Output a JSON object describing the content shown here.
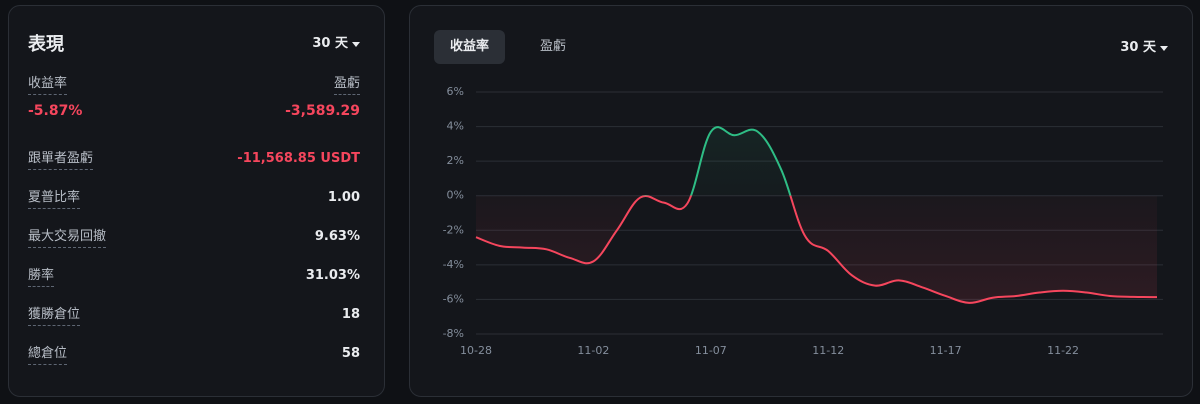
{
  "header": {
    "title": "表現",
    "period": "30 天"
  },
  "summary": {
    "roi_label": "收益率",
    "pnl_label": "盈虧",
    "roi_value": "-5.87%",
    "pnl_value": "-3,589.29"
  },
  "metrics": [
    {
      "label": "跟單者盈虧",
      "value": "-11,568.85 USDT"
    },
    {
      "label": "夏普比率",
      "value": "1.00"
    },
    {
      "label": "最大交易回撤",
      "value": "9.63%"
    },
    {
      "label": "勝率",
      "value": "31.03%"
    },
    {
      "label": "獲勝倉位",
      "value": "18"
    },
    {
      "label": "總倉位",
      "value": "58"
    }
  ],
  "tabs": [
    "收益率",
    "盈虧"
  ],
  "chart_period": "30 天",
  "chart_data": {
    "type": "line",
    "categories": [
      "10-28",
      null,
      null,
      null,
      null,
      "11-02",
      null,
      null,
      null,
      null,
      "11-07",
      null,
      null,
      null,
      null,
      "11-12",
      null,
      null,
      null,
      null,
      "11-17",
      null,
      null,
      null,
      null,
      "11-22",
      null,
      null,
      null,
      null
    ],
    "values": [
      -2.4,
      -2.9,
      -3.0,
      -3.1,
      -3.6,
      -3.8,
      -2.0,
      -0.1,
      -0.4,
      -0.45,
      3.7,
      3.5,
      3.7,
      1.5,
      -2.3,
      -3.2,
      -4.6,
      -5.2,
      -4.9,
      -5.3,
      -5.8,
      -6.2,
      -5.9,
      -5.8,
      -5.6,
      -5.5,
      -5.6,
      -5.8,
      -5.85,
      -5.87
    ],
    "colors": {
      "positive": "#2ebd85",
      "negative": "#f6465d"
    },
    "ylim": [
      -8,
      6
    ],
    "yticks": [
      {
        "value": 6,
        "label": "6%"
      },
      {
        "value": 4,
        "label": "4%"
      },
      {
        "value": 2,
        "label": "2%"
      },
      {
        "value": 0,
        "label": "0%"
      },
      {
        "value": -2,
        "label": "-2%"
      },
      {
        "value": -4,
        "label": "-4%"
      },
      {
        "value": -6,
        "label": "-6%"
      },
      {
        "value": -8,
        "label": "-8%"
      }
    ],
    "grid": true
  }
}
